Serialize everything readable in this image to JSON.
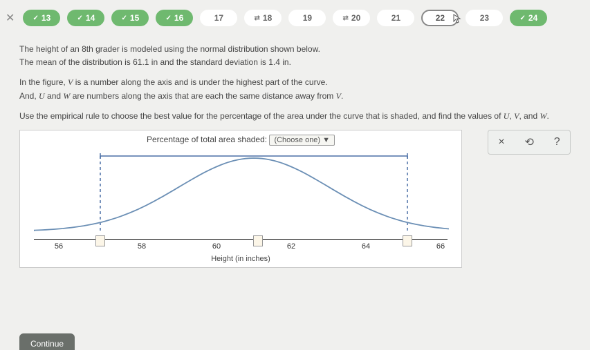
{
  "progress": {
    "items": [
      {
        "n": "13",
        "state": "green",
        "check": true
      },
      {
        "n": "14",
        "state": "green",
        "check": true
      },
      {
        "n": "15",
        "state": "green",
        "check": true
      },
      {
        "n": "16",
        "state": "green",
        "check": true
      },
      {
        "n": "17",
        "state": "white"
      },
      {
        "n": "18",
        "state": "white",
        "half": true
      },
      {
        "n": "19",
        "state": "white"
      },
      {
        "n": "20",
        "state": "white",
        "half": true
      },
      {
        "n": "21",
        "state": "white"
      },
      {
        "n": "22",
        "state": "current",
        "cursor": true
      },
      {
        "n": "23",
        "state": "white"
      },
      {
        "n": "24",
        "state": "green",
        "check": true
      }
    ]
  },
  "question": {
    "line1a": "The height of an 8th grader is modeled using the normal distribution shown below.",
    "line1b_pre": "The mean of the distribution is ",
    "mean": "61.1",
    "line1b_mid": " in and the standard deviation is ",
    "sd": "1.4",
    "line1b_post": " in.",
    "line2a_pre": "In the figure, ",
    "V": "V",
    "line2a_post": " is a number along the axis and is under the highest part of the curve.",
    "line2b_pre": "And, ",
    "U": "U",
    "line2b_mid": " and ",
    "W": "W",
    "line2b_post": " are numbers along the axis that are each the same distance away from ",
    "V2": "V",
    "line2b_end": ".",
    "line3_pre": "Use the empirical rule to choose the best value for the percentage of the area under the curve that is shaded, and find the values of ",
    "U2": "U",
    "c1": ", ",
    "V3": "V",
    "c2": ", and ",
    "W2": "W",
    "line3_end": "."
  },
  "figure": {
    "title_pre": "Percentage of total area shaded: ",
    "dropdown": "(Choose one)  ▼",
    "axis_label": "Height (in inches)",
    "ticks": [
      {
        "label": "56",
        "pct": 6
      },
      {
        "input": true,
        "pct": 16
      },
      {
        "label": "58",
        "pct": 26
      },
      {
        "label": "60",
        "pct": 44
      },
      {
        "input": true,
        "pct": 54
      },
      {
        "label": "62",
        "pct": 62
      },
      {
        "label": "64",
        "pct": 80
      },
      {
        "input": true,
        "pct": 90
      },
      {
        "label": "66",
        "pct": 98
      }
    ],
    "shade_left_pct": 16,
    "shade_right_pct": 90,
    "curve_color": "#6b8fb5",
    "shade_line_color": "#4a6fa5"
  },
  "toolbox": {
    "close": "×",
    "reset": "⟲",
    "help": "?"
  },
  "continue_label": "Continue"
}
